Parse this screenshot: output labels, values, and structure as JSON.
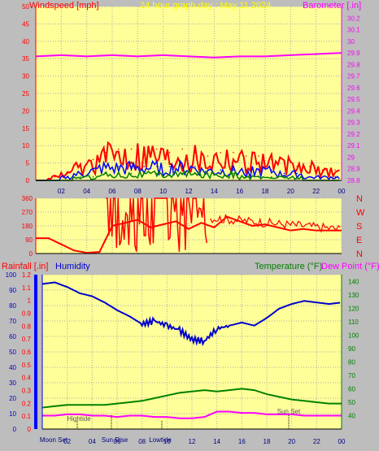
{
  "header": {
    "wind_title": "Windspeed [mph]",
    "graph_date": "24 hour graph day : May 11 2024",
    "baro_title": "Barometer [.in]"
  },
  "lower_header": {
    "rain_title": "Rainfall [.in]",
    "humidity_title": "Humidity",
    "temperature_title": "Temperature (°F)",
    "dewpoint_title": "Dew Point (°F)"
  },
  "compass": [
    "N",
    "W",
    "S",
    "E",
    "N"
  ],
  "event_labels": [
    "Moon Set",
    "Hightide",
    "Sun Rise",
    "Lowtide",
    "Sun Set"
  ],
  "colors": {
    "plot_bg": "#ffff99",
    "frame_bg": "#bdbdbd",
    "wind_red": "#ff0000",
    "wind_blue": "#0000ff",
    "wind_green": "#008000",
    "baro": "#ff00ff",
    "humidity": "#0000cc",
    "temperature": "#008000",
    "dewpoint": "#ff00ff",
    "date_text": "#ffff00"
  },
  "chart_data": [
    {
      "type": "line",
      "name": "windspeed",
      "x_ticks": [
        "02",
        "04",
        "06",
        "08",
        "10",
        "12",
        "14",
        "16",
        "18",
        "20",
        "22",
        "00"
      ],
      "ylim": [
        0,
        50
      ],
      "y_ticks": [
        0,
        5,
        10,
        15,
        20,
        25,
        30,
        35,
        40,
        45,
        50
      ],
      "series": [
        {
          "name": "gust",
          "x": [
            0.5,
            1.5,
            2.5,
            3.5,
            4.5,
            5.5,
            6.5,
            7.5,
            8.5,
            9.5,
            10.5,
            11.5,
            12.5,
            13.5,
            14.5,
            15.5,
            16.5,
            17.5,
            18.5,
            19.5,
            20.5,
            21.5,
            22.5,
            23.5
          ],
          "y": [
            0,
            1,
            2,
            4,
            6,
            8,
            9,
            9,
            9,
            9,
            8,
            9,
            8,
            7,
            8,
            8,
            7,
            7,
            6,
            5,
            4,
            4,
            3,
            3
          ]
        },
        {
          "name": "speed",
          "x": [
            0.5,
            1.5,
            2.5,
            3.5,
            4.5,
            5.5,
            6.5,
            7.5,
            8.5,
            9.5,
            10.5,
            11.5,
            12.5,
            13.5,
            14.5,
            15.5,
            16.5,
            17.5,
            18.5,
            19.5,
            20.5,
            21.5,
            22.5,
            23.5
          ],
          "y": [
            0,
            0,
            1,
            2,
            3,
            4,
            4,
            4,
            4,
            4,
            4,
            4,
            4,
            3,
            3,
            3,
            3,
            3,
            3,
            2,
            2,
            1,
            1,
            1
          ]
        },
        {
          "name": "average",
          "x": [
            0.5,
            1.5,
            2.5,
            3.5,
            4.5,
            5.5,
            6.5,
            7.5,
            8.5,
            9.5,
            10.5,
            11.5,
            12.5,
            13.5,
            14.5,
            15.5,
            16.5,
            17.5,
            18.5,
            19.5,
            20.5,
            21.5,
            22.5,
            23.5
          ],
          "y": [
            0,
            0,
            0,
            1,
            1,
            2,
            2,
            2,
            2,
            2,
            2,
            2,
            2,
            2,
            2,
            2,
            1,
            1,
            1,
            1,
            1,
            0,
            0,
            0
          ]
        }
      ],
      "barometer": {
        "ylim": [
          28.8,
          30.3
        ],
        "y_ticks": [
          "28.8",
          "28.9",
          "29",
          "29.1",
          "29.2",
          "29.3",
          "29.4",
          "29.5",
          "29.6",
          "29.7",
          "29.8",
          "29.9",
          "30",
          "30.1",
          "30.2"
        ],
        "x": [
          0,
          2,
          4,
          6,
          8,
          10,
          12,
          14,
          16,
          18,
          20,
          22,
          24
        ],
        "y": [
          29.87,
          29.88,
          29.87,
          29.88,
          29.87,
          29.88,
          29.87,
          29.86,
          29.87,
          29.87,
          29.88,
          29.89,
          29.9
        ]
      }
    },
    {
      "type": "line",
      "name": "wind_direction",
      "ylim": [
        0,
        360
      ],
      "y_ticks": [
        0,
        90,
        180,
        270,
        360
      ],
      "x": [
        0,
        1,
        2,
        3,
        4,
        5,
        6,
        7,
        8,
        9,
        10,
        11,
        12,
        13,
        14,
        15,
        16,
        17,
        18,
        19,
        20,
        21,
        22,
        23,
        24
      ],
      "y": [
        100,
        100,
        60,
        20,
        5,
        10,
        180,
        200,
        220,
        170,
        190,
        210,
        160,
        200,
        170,
        240,
        210,
        180,
        190,
        170,
        150,
        160,
        150,
        150,
        150
      ]
    },
    {
      "type": "line",
      "name": "humidity_temperature",
      "rain_ylim": [
        0,
        1.2
      ],
      "rain_ticks": [
        "0",
        "0.1",
        "0.2",
        "0.3",
        "0.4",
        "0.5",
        "0.6",
        "0.7",
        "0.8",
        "0.9",
        "1",
        "1.1",
        "1.2"
      ],
      "humidity_ylim": [
        0,
        100
      ],
      "humidity_ticks": [
        0,
        10,
        20,
        30,
        40,
        50,
        60,
        70,
        80,
        90,
        100
      ],
      "temp_ylim": [
        30,
        145
      ],
      "temp_ticks": [
        40,
        50,
        60,
        70,
        80,
        90,
        100,
        110,
        120,
        130,
        140
      ],
      "series": [
        {
          "name": "humidity",
          "x": [
            0,
            1,
            2,
            3,
            4,
            5,
            6,
            7,
            8,
            9,
            10,
            11,
            12,
            13,
            14,
            15,
            16,
            17,
            18,
            19,
            20,
            21,
            22,
            23,
            24
          ],
          "y": [
            94,
            95,
            92,
            88,
            86,
            82,
            77,
            73,
            68,
            70,
            67,
            64,
            58,
            57,
            65,
            67,
            69,
            67,
            72,
            78,
            81,
            83,
            82,
            81,
            82
          ]
        },
        {
          "name": "temperature",
          "x": [
            0,
            1,
            2,
            3,
            4,
            5,
            6,
            7,
            8,
            9,
            10,
            11,
            12,
            13,
            14,
            15,
            16,
            17,
            18,
            19,
            20,
            21,
            22,
            23,
            24
          ],
          "y": [
            46,
            47,
            48,
            48,
            48,
            48,
            49,
            50,
            51,
            53,
            55,
            57,
            58,
            59,
            58,
            59,
            60,
            59,
            56,
            54,
            52,
            51,
            50,
            49,
            49
          ]
        },
        {
          "name": "dew_point",
          "x": [
            0,
            1,
            2,
            3,
            4,
            5,
            6,
            7,
            8,
            9,
            10,
            11,
            12,
            13,
            14,
            15,
            16,
            17,
            18,
            19,
            20,
            21,
            22,
            23,
            24
          ],
          "y": [
            40,
            40,
            41,
            41,
            40,
            40,
            39,
            40,
            40,
            39,
            39,
            38,
            38,
            39,
            43,
            43,
            42,
            42,
            41,
            41,
            41,
            40,
            40,
            40,
            40
          ]
        }
      ]
    }
  ]
}
